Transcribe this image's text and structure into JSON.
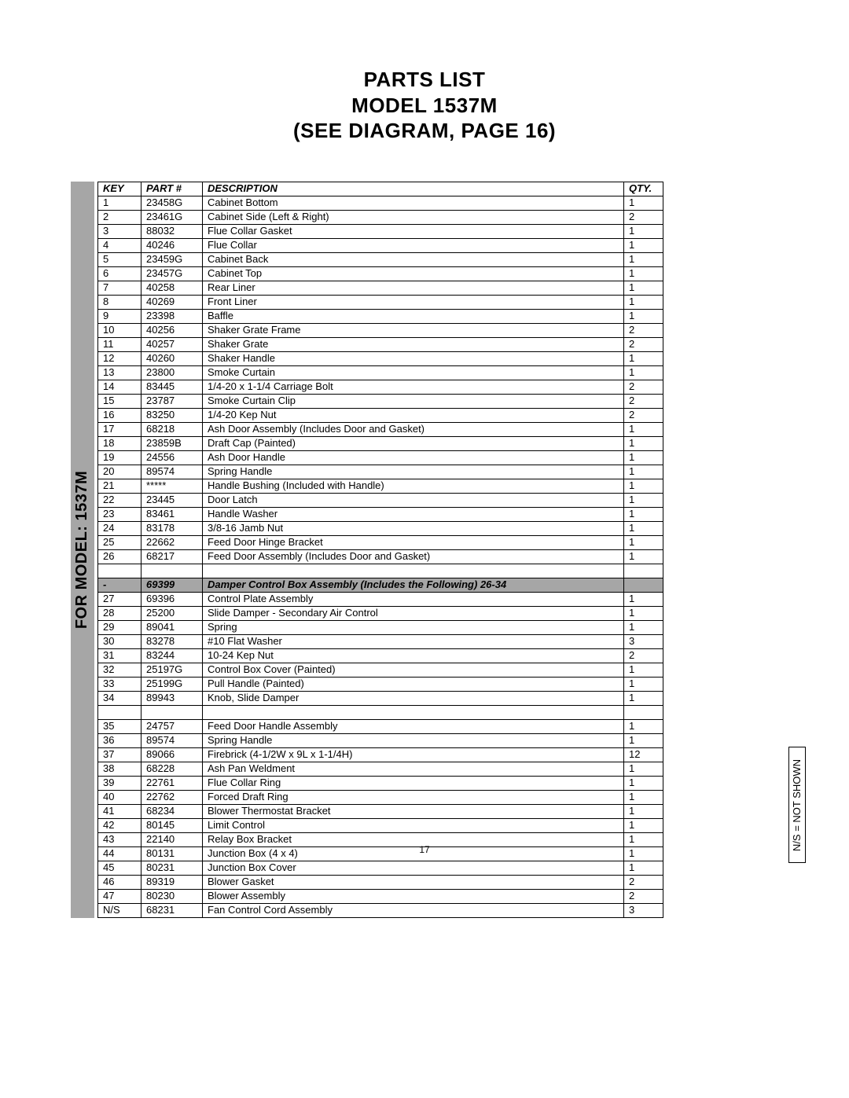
{
  "title": {
    "line1": "PARTS  LIST",
    "line2": "MODEL 1537M",
    "line3": "(SEE DIAGRAM, PAGE 16)"
  },
  "left_bar": "FOR MODEL: 1537M",
  "ns_note": "N/S = NOT SHOWN",
  "page_number": "17",
  "table": {
    "headers": {
      "key": "KEY",
      "part": "PART #",
      "desc": "DESCRIPTION",
      "qty": "QTY."
    },
    "section_header": {
      "key": "-",
      "part": "69399",
      "desc": "Damper Control Box Assembly (Includes the Following) 26-34",
      "qty": ""
    },
    "rows_a": [
      {
        "key": "1",
        "part": "23458G",
        "desc": "Cabinet Bottom",
        "qty": "1"
      },
      {
        "key": "2",
        "part": "23461G",
        "desc": "Cabinet Side (Left & Right)",
        "qty": "2"
      },
      {
        "key": "3",
        "part": "88032",
        "desc": "Flue Collar Gasket",
        "qty": "1"
      },
      {
        "key": "4",
        "part": "40246",
        "desc": "Flue Collar",
        "qty": "1"
      },
      {
        "key": "5",
        "part": "23459G",
        "desc": "Cabinet Back",
        "qty": "1"
      },
      {
        "key": "6",
        "part": "23457G",
        "desc": "Cabinet Top",
        "qty": "1"
      },
      {
        "key": "7",
        "part": "40258",
        "desc": "Rear Liner",
        "qty": "1"
      },
      {
        "key": "8",
        "part": "40269",
        "desc": "Front Liner",
        "qty": "1"
      },
      {
        "key": "9",
        "part": "23398",
        "desc": "Baffle",
        "qty": "1"
      },
      {
        "key": "10",
        "part": "40256",
        "desc": "Shaker Grate Frame",
        "qty": "2"
      },
      {
        "key": "11",
        "part": "40257",
        "desc": "Shaker Grate",
        "qty": "2"
      },
      {
        "key": "12",
        "part": "40260",
        "desc": "Shaker Handle",
        "qty": "1"
      },
      {
        "key": "13",
        "part": "23800",
        "desc": "Smoke Curtain",
        "qty": "1"
      },
      {
        "key": "14",
        "part": "83445",
        "desc": "1/4-20 x 1-1/4 Carriage Bolt",
        "qty": "2"
      },
      {
        "key": "15",
        "part": "23787",
        "desc": "Smoke Curtain Clip",
        "qty": "2"
      },
      {
        "key": "16",
        "part": "83250",
        "desc": "1/4-20 Kep Nut",
        "qty": "2"
      },
      {
        "key": "17",
        "part": "68218",
        "desc": "Ash Door Assembly (Includes Door and Gasket)",
        "qty": "1"
      },
      {
        "key": "18",
        "part": "23859B",
        "desc": "Draft Cap (Painted)",
        "qty": "1"
      },
      {
        "key": "19",
        "part": "24556",
        "desc": "Ash Door Handle",
        "qty": "1"
      },
      {
        "key": "20",
        "part": "89574",
        "desc": "Spring Handle",
        "qty": "1"
      },
      {
        "key": "21",
        "part": "*****",
        "desc": "Handle Bushing (Included with Handle)",
        "qty": "1"
      },
      {
        "key": "22",
        "part": "23445",
        "desc": "Door Latch",
        "qty": "1"
      },
      {
        "key": "23",
        "part": "83461",
        "desc": "Handle Washer",
        "qty": "1"
      },
      {
        "key": "24",
        "part": "83178",
        "desc": "3/8-16 Jamb Nut",
        "qty": "1"
      },
      {
        "key": "25",
        "part": "22662",
        "desc": "Feed Door Hinge Bracket",
        "qty": "1"
      },
      {
        "key": "26",
        "part": "68217",
        "desc": "Feed Door Assembly (Includes Door and Gasket)",
        "qty": "1"
      }
    ],
    "rows_b": [
      {
        "key": "27",
        "part": "69396",
        "desc": "Control Plate Assembly",
        "qty": "1"
      },
      {
        "key": "28",
        "part": "25200",
        "desc": "Slide Damper - Secondary Air Control",
        "qty": "1"
      },
      {
        "key": "29",
        "part": "89041",
        "desc": "Spring",
        "qty": "1"
      },
      {
        "key": "30",
        "part": "83278",
        "desc": "#10 Flat Washer",
        "qty": "3"
      },
      {
        "key": "31",
        "part": "83244",
        "desc": "10-24 Kep Nut",
        "qty": "2"
      },
      {
        "key": "32",
        "part": "25197G",
        "desc": "Control Box Cover (Painted)",
        "qty": "1"
      },
      {
        "key": "33",
        "part": "25199G",
        "desc": "Pull Handle (Painted)",
        "qty": "1"
      },
      {
        "key": "34",
        "part": "89943",
        "desc": "Knob, Slide Damper",
        "qty": "1"
      }
    ],
    "rows_c": [
      {
        "key": "35",
        "part": "24757",
        "desc": "Feed Door Handle Assembly",
        "qty": "1"
      },
      {
        "key": "36",
        "part": "89574",
        "desc": "Spring Handle",
        "qty": "1"
      },
      {
        "key": "37",
        "part": "89066",
        "desc": "Firebrick (4-1/2W x 9L x 1-1/4H)",
        "qty": "12"
      },
      {
        "key": "38",
        "part": "68228",
        "desc": "Ash Pan Weldment",
        "qty": "1"
      },
      {
        "key": "39",
        "part": "22761",
        "desc": "Flue Collar Ring",
        "qty": "1"
      },
      {
        "key": "40",
        "part": "22762",
        "desc": "Forced Draft Ring",
        "qty": "1"
      },
      {
        "key": "41",
        "part": "68234",
        "desc": "Blower Thermostat Bracket",
        "qty": "1"
      },
      {
        "key": "42",
        "part": "80145",
        "desc": "Limit Control",
        "qty": "1"
      },
      {
        "key": "43",
        "part": "22140",
        "desc": "Relay Box Bracket",
        "qty": "1"
      },
      {
        "key": "44",
        "part": "80131",
        "desc": "Junction Box (4 x 4)",
        "qty": "1"
      },
      {
        "key": "45",
        "part": "80231",
        "desc": "Junction Box Cover",
        "qty": "1"
      },
      {
        "key": "46",
        "part": "89319",
        "desc": "Blower Gasket",
        "qty": "2"
      },
      {
        "key": "47",
        "part": "80230",
        "desc": "Blower Assembly",
        "qty": "2"
      },
      {
        "key": "N/S",
        "part": "68231",
        "desc": "Fan Control Cord Assembly",
        "qty": "3"
      }
    ]
  },
  "style": {
    "bg": "#ffffff",
    "text": "#000000",
    "grey_fill": "#a6a6a6",
    "title_fontsize": 26,
    "body_fontsize": 13,
    "leftbar_fontsize": 20
  }
}
